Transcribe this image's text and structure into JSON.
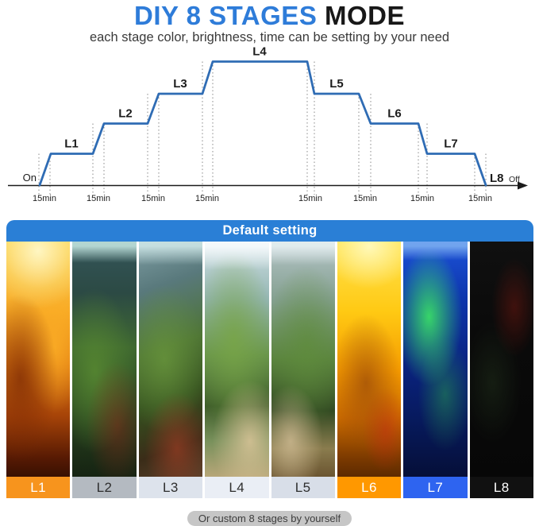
{
  "title": {
    "highlight": "DIY 8 STAGES",
    "rest": "MODE"
  },
  "subtitle": "each stage color, brightness, time can be setting by your need",
  "chart_data": {
    "type": "line",
    "title": "8-stage brightness timeline",
    "stages": [
      "L1",
      "L2",
      "L3",
      "L4",
      "L5",
      "L6",
      "L7",
      "L8"
    ],
    "levels": [
      1,
      2,
      3,
      4,
      3,
      2,
      1,
      0
    ],
    "start_label": "On",
    "end_label": "Off",
    "tick_label": "15min",
    "tick_count": 8,
    "xlabel": "",
    "ylabel": "",
    "grid": "dotted-vertical-at-ramps",
    "legend": "none",
    "description": "Light turns On, brightness steps up through L1-L4, then steps down through L5-L7 and reaches L8 (Off); each ramp between stages lasts 15min"
  },
  "default_panel": {
    "header": "Default setting",
    "strips": [
      {
        "label": "L1",
        "scene": "warm-amber-light",
        "label_bg": "#f7941d",
        "label_color": "#ffffff"
      },
      {
        "label": "L2",
        "scene": "cool-morning-light",
        "label_bg": "#b4bac1",
        "label_color": "#2e2e2e"
      },
      {
        "label": "L3",
        "scene": "fresh-green-light",
        "label_bg": "#dde3ec",
        "label_color": "#2e2e2e"
      },
      {
        "label": "L4",
        "scene": "bright-noon-light",
        "label_bg": "#eaeef5",
        "label_color": "#2e2e2e"
      },
      {
        "label": "L5",
        "scene": "soft-daylight",
        "label_bg": "#d8dee8",
        "label_color": "#2e2e2e"
      },
      {
        "label": "L6",
        "scene": "golden-sunset-light",
        "label_bg": "#ff9800",
        "label_color": "#ffffff"
      },
      {
        "label": "L7",
        "scene": "blue-moonlight",
        "label_bg": "#2e64f0",
        "label_color": "#ffffff"
      },
      {
        "label": "L8",
        "scene": "lights-off",
        "label_bg": "#111111",
        "label_color": "#ffffff"
      }
    ]
  },
  "footer_note": "Or custom 8 stages by yourself",
  "colors": {
    "title_accent": "#2e7cd9",
    "chart_line": "#2f6cb4",
    "panel_header_bg": "#2a7fd6"
  }
}
